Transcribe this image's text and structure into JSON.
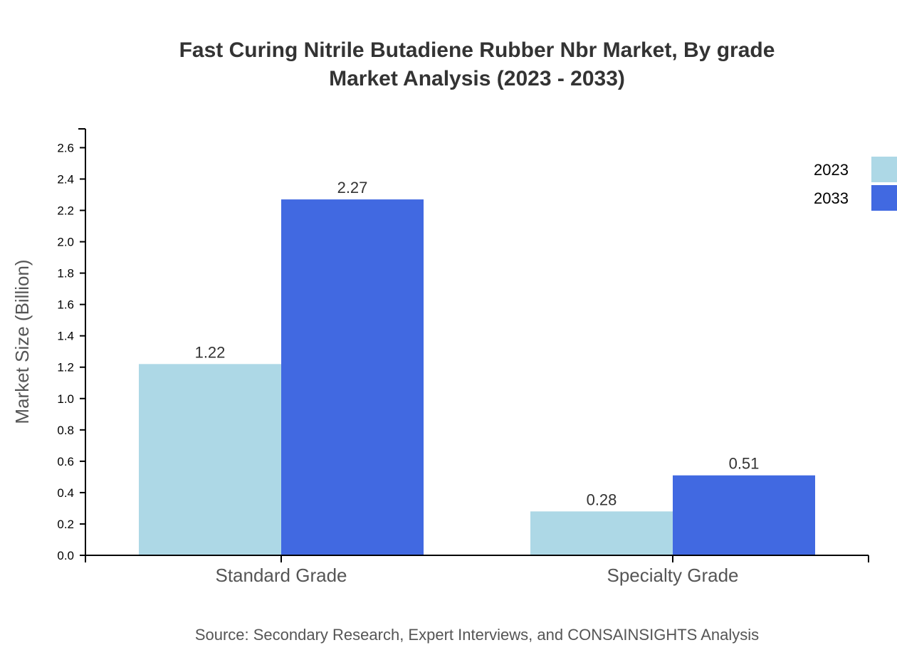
{
  "chart_data": {
    "type": "bar",
    "title": [
      "Fast Curing Nitrile Butadiene Rubber Nbr Market, By grade",
      "Market Analysis (2023 - 2033)"
    ],
    "xlabel": "",
    "ylabel": "Market Size (Billion)",
    "categories": [
      "Standard Grade",
      "Specialty Grade"
    ],
    "series": [
      {
        "name": "2023",
        "values": [
          1.22,
          0.28
        ],
        "color": "#add8e6"
      },
      {
        "name": "2033",
        "values": [
          2.27,
          0.51
        ],
        "color": "#4169e1"
      }
    ],
    "ylim": [
      0,
      2.72
    ],
    "yticks": [
      "0.0",
      "0.2",
      "0.4",
      "0.6",
      "0.8",
      "1.0",
      "1.2",
      "1.4",
      "1.6",
      "1.8",
      "2.0",
      "2.2",
      "2.4",
      "2.6"
    ],
    "grid": false,
    "legend": "top-right",
    "source": "Source: Secondary Research, Expert Interviews, and CONSAINSIGHTS Analysis"
  }
}
